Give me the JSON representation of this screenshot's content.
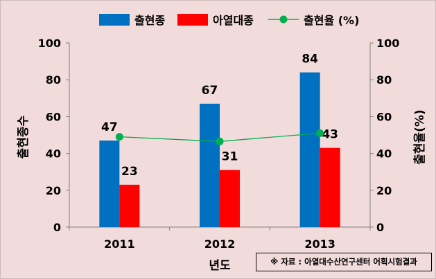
{
  "chart_data": {
    "type": "bar",
    "categories": [
      "2011",
      "2012",
      "2013"
    ],
    "series": [
      {
        "name": "출현종",
        "kind": "bar",
        "axis": "left",
        "color": "#0070c0",
        "values": [
          47,
          67,
          84
        ]
      },
      {
        "name": "아열대종",
        "kind": "bar",
        "axis": "left",
        "color": "#ff0000",
        "values": [
          23,
          31,
          43
        ]
      },
      {
        "name": "출현율 (%)",
        "kind": "line",
        "axis": "right",
        "color": "#00b050",
        "values": [
          49,
          46.5,
          51
        ]
      }
    ],
    "xlabel": "년도",
    "ylabel": "출현종수",
    "y2label": "출현율(%)",
    "ylim": [
      0,
      100
    ],
    "y2lim": [
      0,
      100
    ],
    "yticks": [
      0,
      20,
      40,
      60,
      80,
      100
    ],
    "y2ticks": [
      0,
      20,
      40,
      60,
      80,
      100
    ],
    "legend_position": "top",
    "grid": false,
    "bar_data_labels": true,
    "line_data_labels": false,
    "background_color": "#f2dcdb",
    "source_note": "※ 자료 :  아열대수산연구센터 어획시험결과"
  }
}
